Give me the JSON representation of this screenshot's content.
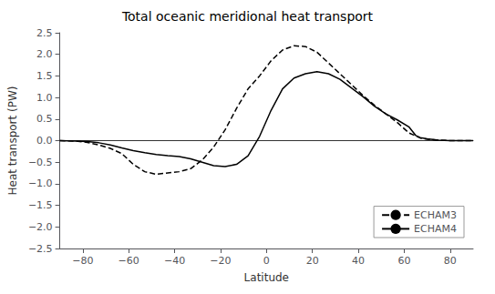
{
  "chart_data": {
    "type": "line",
    "title": "Total oceanic meridional heat transport",
    "xlabel": "Latitude",
    "ylabel": "Heat transport (PW)",
    "xlim": [
      -90,
      90
    ],
    "ylim": [
      -2.5,
      2.5
    ],
    "xticks": [
      {
        "value": -80,
        "label": "−80"
      },
      {
        "value": -60,
        "label": "−60"
      },
      {
        "value": -40,
        "label": "−40"
      },
      {
        "value": -20,
        "label": "−20"
      },
      0,
      20,
      40,
      60,
      80
    ],
    "yticks": [
      {
        "value": -2.5,
        "label": "−2.5"
      },
      {
        "value": -2,
        "label": "−2.0"
      },
      {
        "value": -1.5,
        "label": "−1.5"
      },
      {
        "value": -1,
        "label": "−1.0"
      },
      {
        "value": -0.5,
        "label": "−0.5"
      },
      {
        "value": 0,
        "label": "0.0"
      },
      0.5,
      {
        "value": 1,
        "label": "1.0"
      },
      1.5,
      {
        "value": 2,
        "label": "2.0"
      },
      2.5
    ],
    "grid": false,
    "legend": "lower right",
    "series": [
      {
        "name": "ECHAM3",
        "color": "#000000",
        "line_style": "dashed",
        "x": [
          -90,
          -83,
          -78,
          -73,
          -68,
          -63,
          -58,
          -53,
          -48,
          -43,
          -38,
          -33,
          -28,
          -23,
          -18,
          -13,
          -8,
          -3,
          2,
          7,
          12,
          17,
          22,
          27,
          32,
          37,
          42,
          47,
          52,
          57,
          62,
          67,
          70,
          75,
          80,
          85,
          90
        ],
        "values": [
          0,
          -0.01,
          -0.04,
          -0.1,
          -0.18,
          -0.3,
          -0.55,
          -0.72,
          -0.78,
          -0.75,
          -0.72,
          -0.65,
          -0.45,
          -0.15,
          0.25,
          0.75,
          1.2,
          1.5,
          1.85,
          2.1,
          2.2,
          2.18,
          2.05,
          1.8,
          1.55,
          1.3,
          1.05,
          0.82,
          0.62,
          0.42,
          0.18,
          0.06,
          0.03,
          0.01,
          0.0,
          0.0,
          0.0
        ]
      },
      {
        "name": "ECHAM4",
        "color": "#000000",
        "line_style": "solid",
        "x": [
          -90,
          -83,
          -78,
          -73,
          -68,
          -63,
          -58,
          -53,
          -48,
          -43,
          -38,
          -33,
          -28,
          -23,
          -18,
          -13,
          -8,
          -3,
          2,
          7,
          12,
          17,
          22,
          27,
          32,
          37,
          42,
          47,
          52,
          57,
          62,
          65,
          67,
          70,
          75,
          80,
          85,
          90
        ],
        "values": [
          0,
          -0.01,
          -0.02,
          -0.05,
          -0.1,
          -0.17,
          -0.23,
          -0.28,
          -0.32,
          -0.35,
          -0.37,
          -0.42,
          -0.5,
          -0.58,
          -0.6,
          -0.55,
          -0.35,
          0.1,
          0.7,
          1.2,
          1.45,
          1.55,
          1.6,
          1.55,
          1.42,
          1.22,
          1.02,
          0.8,
          0.62,
          0.48,
          0.32,
          0.12,
          0.07,
          0.04,
          0.01,
          0.0,
          0.0,
          0.0
        ]
      }
    ]
  }
}
